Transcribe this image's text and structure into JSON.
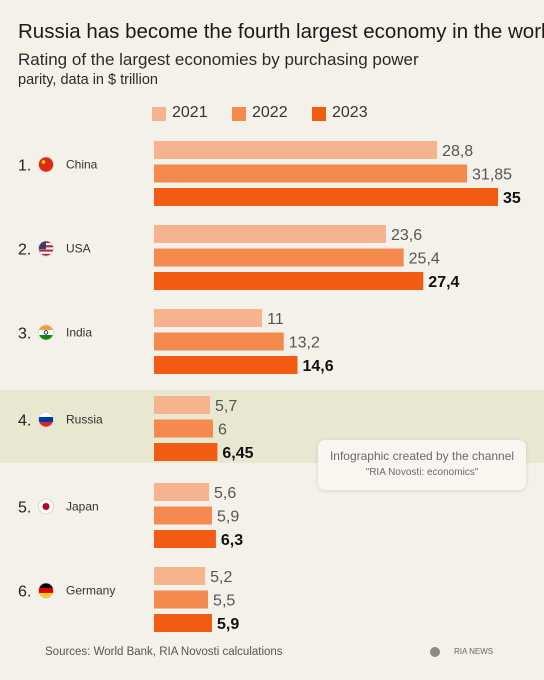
{
  "header": {
    "title": "Russia has become the fourth largest economy in the world",
    "subtitle_line1": "Rating of the largest economies by purchasing power",
    "subtitle_line2": "parity, data in $ trillion"
  },
  "colors": {
    "s2021": "#f6b48e",
    "s2022": "#f48a4e",
    "s2023": "#f25c12",
    "highlight": "#e7e8cf"
  },
  "chart_data": {
    "type": "bar",
    "orientation": "horizontal",
    "title": "Russia has become the fourth largest economy in the world",
    "subtitle": "Rating of the largest economies by purchasing power parity, data in $ trillion",
    "legend_position": "top",
    "categories": [
      "China",
      "USA",
      "India",
      "Russia",
      "Japan",
      "Germany"
    ],
    "ranks": [
      "1.",
      "2.",
      "3.",
      "4.",
      "5.",
      "6."
    ],
    "flags": [
      "china-flag",
      "usa-flag",
      "india-flag",
      "russia-flag",
      "japan-flag",
      "germany-flag"
    ],
    "highlighted_category": "Russia",
    "series": [
      {
        "name": "2021",
        "values": [
          28.8,
          23.6,
          11,
          5.7,
          5.6,
          5.2
        ],
        "labels": [
          "28,8",
          "23,6",
          "11",
          "5,7",
          "5,6",
          "5,2"
        ]
      },
      {
        "name": "2022",
        "values": [
          31.85,
          25.4,
          13.2,
          6,
          5.9,
          5.5
        ],
        "labels": [
          "31,85",
          "25,4",
          "13,2",
          "6",
          "5,9",
          "5,5"
        ]
      },
      {
        "name": "2023",
        "values": [
          35,
          27.4,
          14.6,
          6.45,
          6.3,
          5.9
        ],
        "labels": [
          "35",
          "27,4",
          "14,6",
          "6,45",
          "6,3",
          "5,9"
        ]
      }
    ],
    "xlim": [
      0,
      35
    ],
    "grid": false
  },
  "infobox": {
    "line1": "Infographic created by the channel",
    "line2": "\"RIA Novosti: economics\""
  },
  "footer": {
    "sources": "Sources: World Bank, RIA Novosti calculations",
    "brand": "RIA NEWS"
  }
}
